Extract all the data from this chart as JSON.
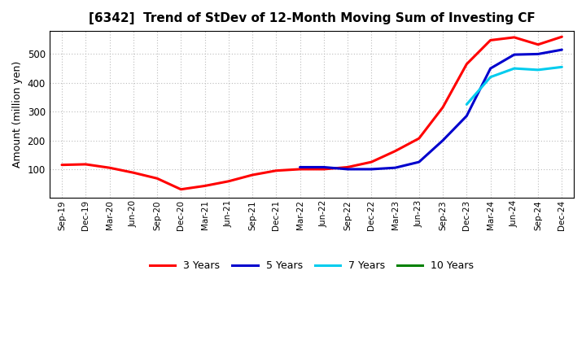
{
  "title": "[6342]  Trend of StDev of 12-Month Moving Sum of Investing CF",
  "ylabel": "Amount (million yen)",
  "ylim": [
    0,
    580
  ],
  "yticks": [
    100,
    200,
    300,
    400,
    500
  ],
  "background_color": "#ffffff",
  "grid_color": "#bbbbbb",
  "legend": [
    "3 Years",
    "5 Years",
    "7 Years",
    "10 Years"
  ],
  "legend_colors": [
    "#ff0000",
    "#0000cd",
    "#00ccee",
    "#008000"
  ],
  "x_labels": [
    "Sep-19",
    "Dec-19",
    "Mar-20",
    "Jun-20",
    "Sep-20",
    "Dec-20",
    "Mar-21",
    "Jun-21",
    "Sep-21",
    "Dec-21",
    "Mar-22",
    "Jun-22",
    "Sep-22",
    "Dec-22",
    "Mar-23",
    "Jun-23",
    "Sep-23",
    "Dec-23",
    "Mar-24",
    "Jun-24",
    "Sep-24",
    "Dec-24"
  ],
  "series_3y": [
    115,
    117,
    105,
    88,
    68,
    30,
    42,
    58,
    80,
    95,
    100,
    100,
    107,
    125,
    163,
    207,
    315,
    465,
    548,
    558,
    533,
    560
  ],
  "series_5y": [
    null,
    null,
    null,
    null,
    null,
    null,
    null,
    null,
    null,
    null,
    107,
    107,
    100,
    100,
    105,
    125,
    200,
    285,
    450,
    498,
    500,
    515
  ],
  "series_7y": [
    null,
    null,
    null,
    null,
    null,
    null,
    null,
    null,
    null,
    null,
    null,
    null,
    null,
    null,
    null,
    null,
    null,
    325,
    420,
    450,
    445,
    455
  ],
  "series_10y": [
    null,
    null,
    null,
    null,
    null,
    null,
    null,
    null,
    null,
    null,
    null,
    null,
    null,
    null,
    null,
    null,
    null,
    null,
    null,
    null,
    null,
    null
  ]
}
